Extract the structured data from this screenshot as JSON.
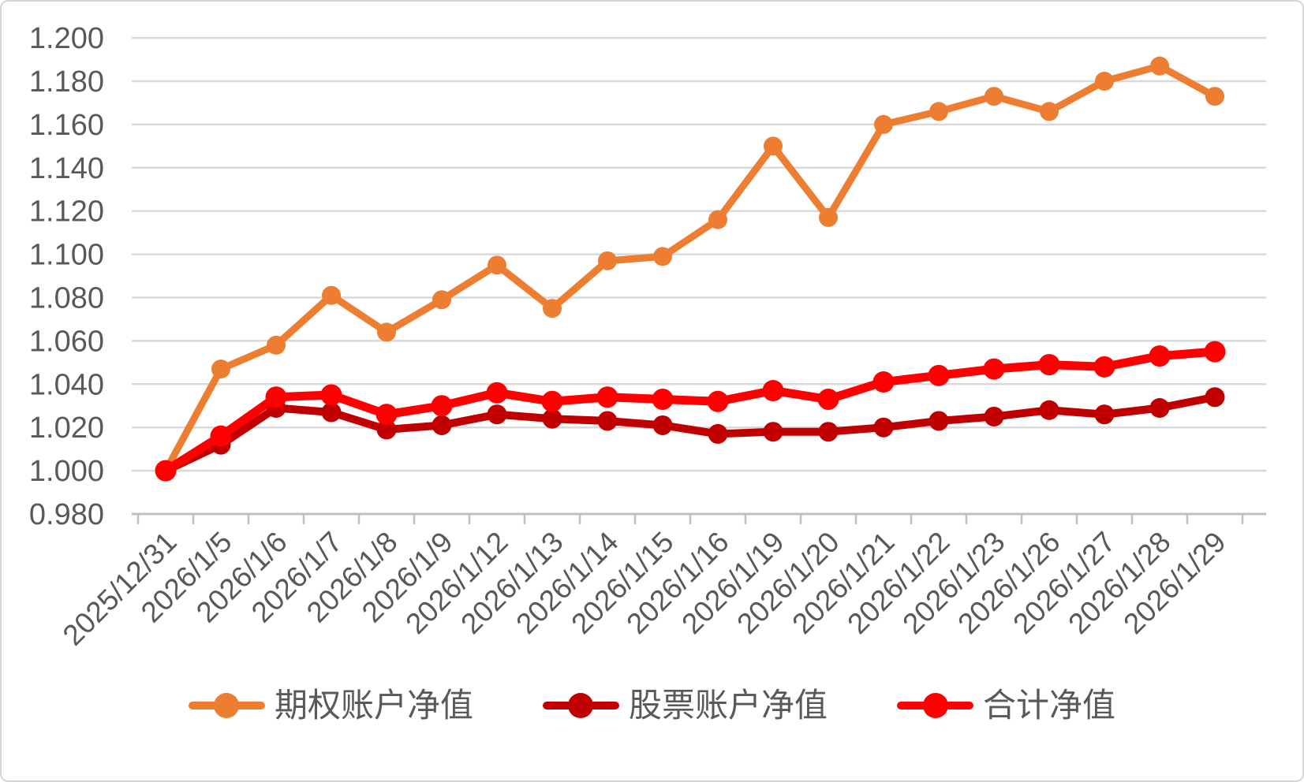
{
  "chart_data": {
    "type": "line",
    "title": "",
    "xlabel": "",
    "ylabel": "",
    "grid": true,
    "legend_position": "bottom",
    "x_categories": [
      "2025/12/31",
      "2026/1/5",
      "2026/1/6",
      "2026/1/7",
      "2026/1/8",
      "2026/1/9",
      "2026/1/12",
      "2026/1/13",
      "2026/1/14",
      "2026/1/15",
      "2026/1/16",
      "2026/1/19",
      "2026/1/20",
      "2026/1/21",
      "2026/1/22",
      "2026/1/23",
      "2026/1/26",
      "2026/1/27",
      "2026/1/28",
      "2026/1/29"
    ],
    "series": [
      {
        "name": "期权账户净值",
        "color": "#ED7D31",
        "values": [
          1.0,
          1.047,
          1.058,
          1.081,
          1.064,
          1.079,
          1.095,
          1.075,
          1.097,
          1.099,
          1.116,
          1.15,
          1.117,
          1.16,
          1.166,
          1.173,
          1.166,
          1.18,
          1.187,
          1.173
        ]
      },
      {
        "name": "股票账户净值",
        "color": "#C00000",
        "values": [
          1.0,
          1.012,
          1.029,
          1.027,
          1.019,
          1.021,
          1.026,
          1.024,
          1.023,
          1.021,
          1.017,
          1.018,
          1.018,
          1.02,
          1.023,
          1.025,
          1.028,
          1.026,
          1.029,
          1.034
        ]
      },
      {
        "name": "合计净值",
        "color": "#FF0000",
        "values": [
          1.0,
          1.016,
          1.034,
          1.035,
          1.026,
          1.03,
          1.036,
          1.032,
          1.034,
          1.033,
          1.032,
          1.037,
          1.033,
          1.041,
          1.044,
          1.047,
          1.049,
          1.048,
          1.053,
          1.055
        ]
      }
    ],
    "y_axis": {
      "min": 0.98,
      "max": 1.2,
      "step": 0.02,
      "tick_labels": [
        "0.980",
        "1.000",
        "1.020",
        "1.040",
        "1.060",
        "1.080",
        "1.100",
        "1.120",
        "1.140",
        "1.160",
        "1.180",
        "1.200"
      ]
    },
    "colors": {
      "gridline": "#D9D9D9",
      "axis_line": "#C0C0C0",
      "tick_text": "#595959",
      "background": "#FFFFFF",
      "frame_border": "#D5D5D5"
    }
  }
}
